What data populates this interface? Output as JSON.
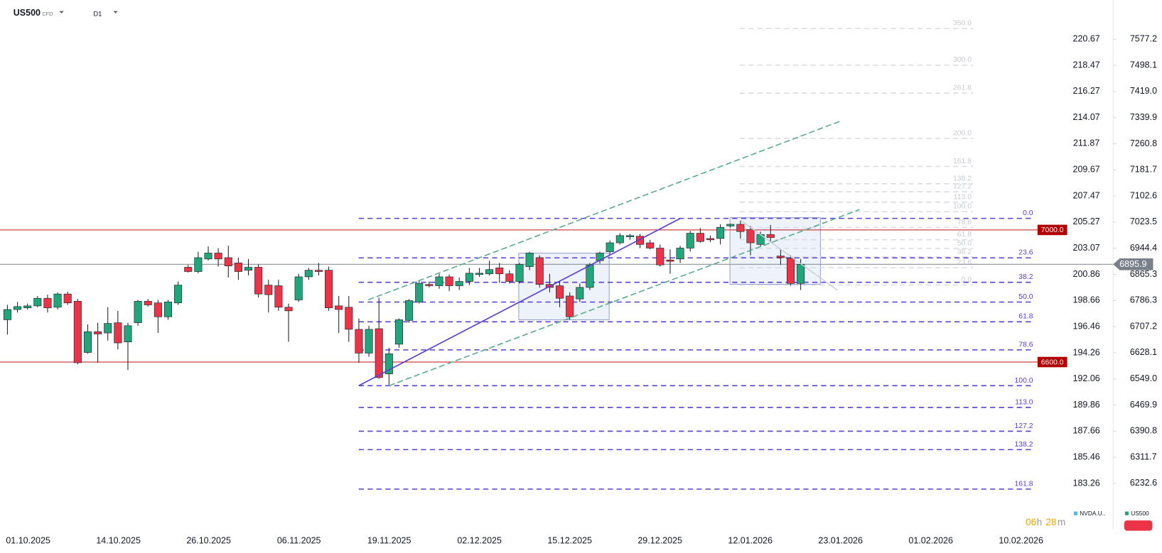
{
  "header": {
    "symbol": "US500",
    "kind": "CFD",
    "interval": "D1"
  },
  "legend": {
    "items": [
      "NVDA.U..",
      "US500"
    ],
    "countdown": [
      "06",
      "h",
      "28",
      "m"
    ]
  },
  "chart_data": {
    "type": "candlestick",
    "x_labels": [
      "01.10.2025",
      "14.10.2025",
      "26.10.2025",
      "06.11.2025",
      "19.11.2025",
      "02.12.2025",
      "15.12.2025",
      "29.12.2025",
      "12.01.2026",
      "23.01.2026",
      "01.02.2026",
      "10.02.2026"
    ],
    "colors": {
      "up": "#22a57a",
      "down": "#ec3448"
    },
    "open": [
      6728,
      6759,
      6764,
      6770,
      6793,
      6766,
      6806,
      6784,
      6629,
      6692,
      6688,
      6719,
      6661,
      6719,
      6784,
      6779,
      6737,
      6779,
      6887,
      6874,
      6912,
      6930,
      6916,
      6900,
      6878,
      6887,
      6833,
      6831,
      6766,
      6788,
      6858,
      6878,
      6878,
      6770,
      6766,
      6699,
      6627,
      6701,
      6564,
      6654,
      6726,
      6782,
      6835,
      6831,
      6858,
      6831,
      6844,
      6865,
      6867,
      6885,
      6867,
      6844,
      6889,
      6916,
      6835,
      6831,
      6800,
      6791,
      6826,
      6907,
      6934,
      6961,
      6979,
      6981,
      6961,
      6945,
      6909,
      6912,
      6945,
      6990,
      6974,
      6974,
      7012,
      7017,
      7001,
      6956,
      6986,
      6921,
      6914,
      6838
    ],
    "close": [
      6759,
      6768,
      6770,
      6793,
      6764,
      6806,
      6779,
      6598,
      6692,
      6685,
      6717,
      6658,
      6710,
      6784,
      6773,
      6737,
      6782,
      6833,
      6874,
      6916,
      6930,
      6912,
      6891,
      6874,
      6887,
      6806,
      6804,
      6766,
      6755,
      6858,
      6878,
      6874,
      6764,
      6759,
      6699,
      6627,
      6699,
      6553,
      6625,
      6728,
      6786,
      6838,
      6831,
      6858,
      6831,
      6844,
      6869,
      6869,
      6880,
      6867,
      6844,
      6896,
      6930,
      6835,
      6826,
      6793,
      6737,
      6826,
      6894,
      6930,
      6961,
      6983,
      6983,
      6956,
      6945,
      6894,
      6905,
      6945,
      6990,
      6965,
      6970,
      7008,
      7017,
      6995,
      6961,
      6986,
      6977,
      6916,
      6838,
      6895.9
    ],
    "high": [
      6773,
      6782,
      6777,
      6800,
      6804,
      6811,
      6813,
      6791,
      6714,
      6719,
      6766,
      6755,
      6719,
      6788,
      6791,
      6788,
      6788,
      6844,
      6894,
      6934,
      6950,
      6945,
      6952,
      6916,
      6912,
      6896,
      6849,
      6849,
      6777,
      6867,
      6885,
      6900,
      6889,
      6800,
      6800,
      6732,
      6710,
      6795,
      6643,
      6732,
      6791,
      6849,
      6844,
      6867,
      6865,
      6856,
      6885,
      6885,
      6907,
      6900,
      6878,
      6900,
      6934,
      6923,
      6867,
      6844,
      6811,
      6838,
      6900,
      6934,
      6968,
      6990,
      6988,
      6988,
      6970,
      6956,
      6941,
      6952,
      6997,
      7006,
      6983,
      7017,
      7019,
      7028,
      7012,
      6995,
      7015,
      6941,
      6923,
      6912
    ],
    "low": [
      6683,
      6750,
      6759,
      6766,
      6750,
      6759,
      6773,
      6593,
      6625,
      6598,
      6665,
      6638,
      6576,
      6710,
      6768,
      6688,
      6728,
      6773,
      6871,
      6869,
      6907,
      6889,
      6856,
      6849,
      6862,
      6795,
      6750,
      6755,
      6661,
      6782,
      6849,
      6862,
      6755,
      6688,
      6661,
      6598,
      6616,
      6549,
      6531,
      6643,
      6719,
      6777,
      6826,
      6822,
      6815,
      6818,
      6833,
      6858,
      6862,
      6840,
      6838,
      6838,
      6878,
      6826,
      6811,
      6766,
      6728,
      6782,
      6818,
      6898,
      6927,
      6956,
      6970,
      6945,
      6941,
      6889,
      6867,
      6900,
      6934,
      6961,
      6963,
      6956,
      7008,
      6974,
      6923,
      6950,
      6961,
      6894,
      6831,
      6818
    ],
    "ylim": [
      6093.7,
      7696.0
    ],
    "yticks": [
      7577.2,
      7498.1,
      {
        "value": 7419,
        "label": "7419.0"
      },
      7339.9,
      7260.8,
      7181.7,
      7102.6,
      7023.5,
      6944.4,
      6865.3,
      6786.3,
      6707.2,
      6628.1,
      {
        "value": 6549,
        "label": "6549.0"
      },
      6469.9,
      6390.8,
      6311.7,
      6232.6
    ],
    "y2lim": [
      179.4,
      223.97
    ],
    "y2ticks": [
      220.67,
      218.47,
      216.27,
      214.07,
      211.87,
      209.67,
      207.47,
      205.27,
      203.07,
      200.86,
      198.66,
      196.46,
      194.26,
      192.06,
      189.86,
      187.66,
      185.46,
      183.26
    ],
    "hlines": [
      {
        "value": 7000,
        "label": "7000.0"
      },
      {
        "value": 6600,
        "label": "6600.0"
      }
    ],
    "last_price": 6895.9,
    "fib_main": {
      "anchor_prices": [
        7034.9,
        6528.4
      ],
      "levels": [
        {
          "value": 0,
          "label": "0.0"
        },
        23.6,
        38.2,
        {
          "value": 50,
          "label": "50.0"
        },
        61.8,
        78.6,
        {
          "value": 100,
          "label": "100.0"
        },
        {
          "value": 113,
          "label": "113.0"
        },
        127.2,
        138.2,
        161.8
      ]
    },
    "fib_faded": {
      "anchor_prices": [
        6833.2,
        7055.1
      ],
      "levels": [
        {
          "value": 0,
          "label": "0.0"
        },
        23.6,
        38.2,
        {
          "value": 50,
          "label": "50.0"
        },
        61.8,
        78.6,
        {
          "value": 100,
          "label": "100.0"
        },
        {
          "value": 113,
          "label": "113.0"
        },
        127.2,
        138.2,
        161.8,
        {
          "value": 200,
          "label": "200.0"
        },
        261.8,
        {
          "value": 300,
          "label": "300.0"
        },
        {
          "value": 350,
          "label": "350.0"
        }
      ]
    }
  }
}
